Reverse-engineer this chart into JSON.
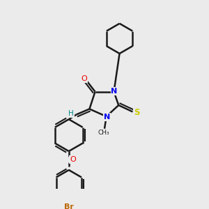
{
  "bg_color": "#ebebeb",
  "bond_color": "#1a1a1a",
  "atom_colors": {
    "N": "#0000ee",
    "O": "#ee0000",
    "S": "#cccc00",
    "Br": "#bb6600",
    "H": "#008888",
    "C": "#1a1a1a"
  },
  "lw": 1.8,
  "dlw": 1.5
}
